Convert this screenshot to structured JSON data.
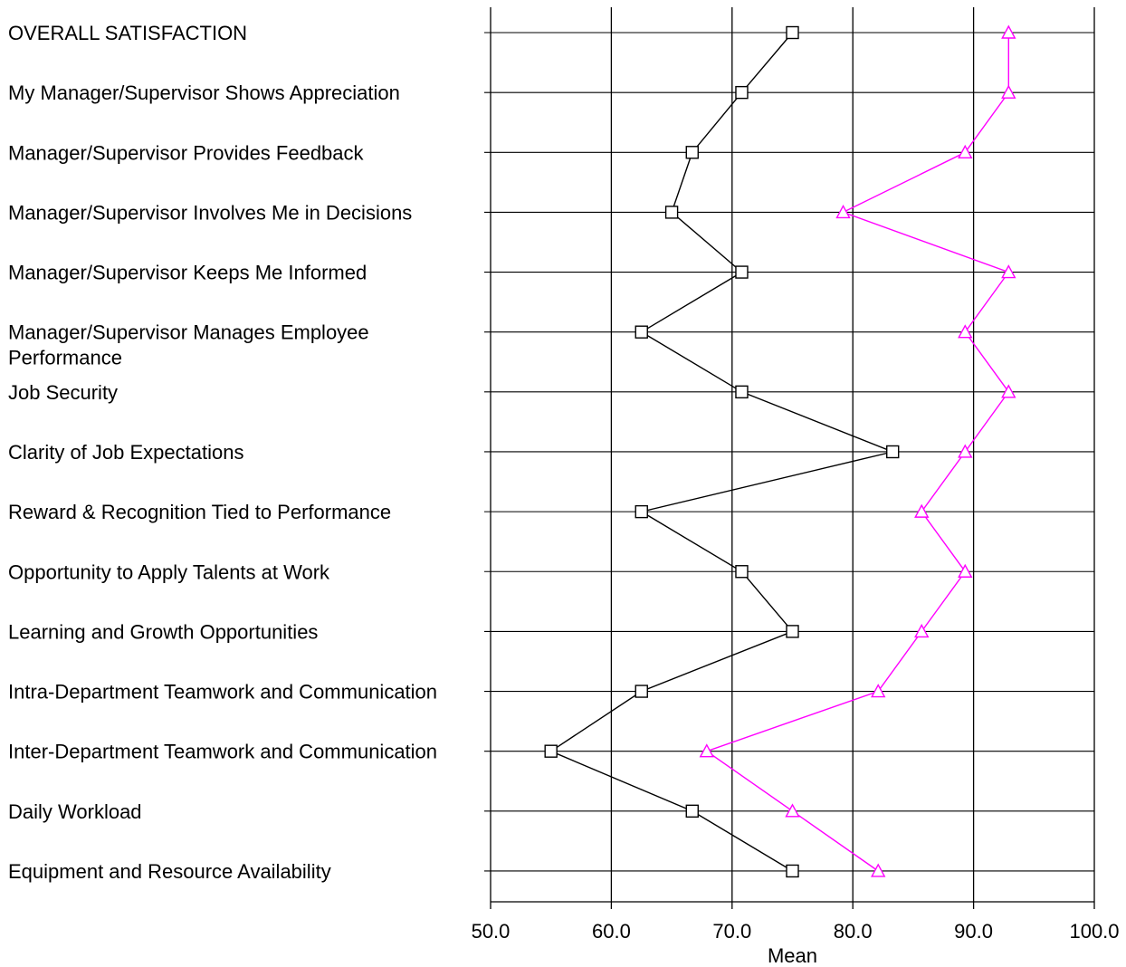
{
  "chart_data": {
    "type": "line",
    "orientation": "horizontal",
    "title": "",
    "xlabel": "Mean",
    "ylabel": "",
    "xlim": [
      50,
      100
    ],
    "x_ticks": [
      "50.0",
      "60.0",
      "70.0",
      "80.0",
      "90.0",
      "100.0"
    ],
    "grid": true,
    "legend": "none",
    "categories": [
      [
        "OVERALL SATISFACTION"
      ],
      [
        "My Manager/Supervisor Shows Appreciation"
      ],
      [
        "Manager/Supervisor Provides Feedback"
      ],
      [
        "Manager/Supervisor Involves Me in Decisions"
      ],
      [
        "Manager/Supervisor Keeps Me Informed"
      ],
      [
        "Manager/Supervisor Manages Employee",
        "Performance"
      ],
      [
        "Job Security"
      ],
      [
        "Clarity of Job Expectations"
      ],
      [
        "Reward & Recognition Tied to Performance"
      ],
      [
        "Opportunity to Apply Talents at Work"
      ],
      [
        "Learning and Growth Opportunities"
      ],
      [
        "Intra-Department Teamwork and Communication"
      ],
      [
        "Inter-Department Teamwork and Communication"
      ],
      [
        "Daily Workload"
      ],
      [
        "Equipment and Resource Availability"
      ]
    ],
    "series": [
      {
        "marker": "square",
        "color": "#000000",
        "values": [
          75.0,
          70.8,
          66.7,
          65.0,
          70.8,
          62.5,
          70.8,
          83.3,
          62.5,
          70.8,
          75.0,
          62.5,
          55.0,
          66.7,
          75.0
        ]
      },
      {
        "marker": "triangle",
        "color": "#ff00ff",
        "values": [
          92.9,
          92.9,
          89.3,
          79.2,
          92.9,
          89.3,
          92.9,
          89.3,
          85.7,
          89.3,
          85.7,
          82.1,
          67.9,
          75.0,
          82.1
        ]
      }
    ]
  }
}
